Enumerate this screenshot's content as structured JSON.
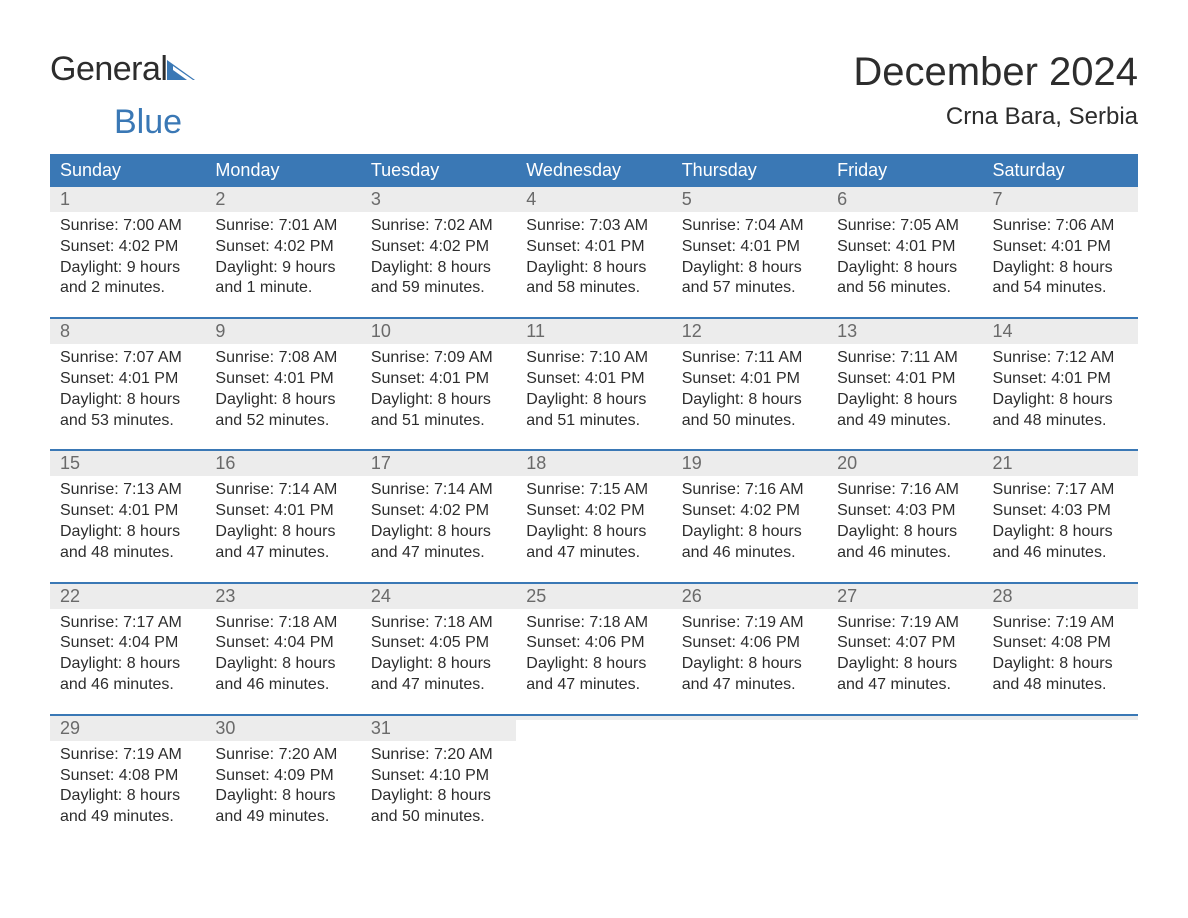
{
  "logo": {
    "text1": "General",
    "text2": "Blue"
  },
  "title": "December 2024",
  "location": "Crna Bara, Serbia",
  "colors": {
    "header_bg": "#3a78b5",
    "header_text": "#ffffff",
    "daynum_bg": "#ececec",
    "daynum_text": "#6a6a6a",
    "body_text": "#2d2d2d",
    "page_bg": "#ffffff",
    "week_border": "#3a78b5",
    "logo_blue": "#3a78b5"
  },
  "day_headers": [
    "Sunday",
    "Monday",
    "Tuesday",
    "Wednesday",
    "Thursday",
    "Friday",
    "Saturday"
  ],
  "weeks": [
    [
      {
        "n": "1",
        "sunrise": "Sunrise: 7:00 AM",
        "sunset": "Sunset: 4:02 PM",
        "d1": "Daylight: 9 hours",
        "d2": "and 2 minutes."
      },
      {
        "n": "2",
        "sunrise": "Sunrise: 7:01 AM",
        "sunset": "Sunset: 4:02 PM",
        "d1": "Daylight: 9 hours",
        "d2": "and 1 minute."
      },
      {
        "n": "3",
        "sunrise": "Sunrise: 7:02 AM",
        "sunset": "Sunset: 4:02 PM",
        "d1": "Daylight: 8 hours",
        "d2": "and 59 minutes."
      },
      {
        "n": "4",
        "sunrise": "Sunrise: 7:03 AM",
        "sunset": "Sunset: 4:01 PM",
        "d1": "Daylight: 8 hours",
        "d2": "and 58 minutes."
      },
      {
        "n": "5",
        "sunrise": "Sunrise: 7:04 AM",
        "sunset": "Sunset: 4:01 PM",
        "d1": "Daylight: 8 hours",
        "d2": "and 57 minutes."
      },
      {
        "n": "6",
        "sunrise": "Sunrise: 7:05 AM",
        "sunset": "Sunset: 4:01 PM",
        "d1": "Daylight: 8 hours",
        "d2": "and 56 minutes."
      },
      {
        "n": "7",
        "sunrise": "Sunrise: 7:06 AM",
        "sunset": "Sunset: 4:01 PM",
        "d1": "Daylight: 8 hours",
        "d2": "and 54 minutes."
      }
    ],
    [
      {
        "n": "8",
        "sunrise": "Sunrise: 7:07 AM",
        "sunset": "Sunset: 4:01 PM",
        "d1": "Daylight: 8 hours",
        "d2": "and 53 minutes."
      },
      {
        "n": "9",
        "sunrise": "Sunrise: 7:08 AM",
        "sunset": "Sunset: 4:01 PM",
        "d1": "Daylight: 8 hours",
        "d2": "and 52 minutes."
      },
      {
        "n": "10",
        "sunrise": "Sunrise: 7:09 AM",
        "sunset": "Sunset: 4:01 PM",
        "d1": "Daylight: 8 hours",
        "d2": "and 51 minutes."
      },
      {
        "n": "11",
        "sunrise": "Sunrise: 7:10 AM",
        "sunset": "Sunset: 4:01 PM",
        "d1": "Daylight: 8 hours",
        "d2": "and 51 minutes."
      },
      {
        "n": "12",
        "sunrise": "Sunrise: 7:11 AM",
        "sunset": "Sunset: 4:01 PM",
        "d1": "Daylight: 8 hours",
        "d2": "and 50 minutes."
      },
      {
        "n": "13",
        "sunrise": "Sunrise: 7:11 AM",
        "sunset": "Sunset: 4:01 PM",
        "d1": "Daylight: 8 hours",
        "d2": "and 49 minutes."
      },
      {
        "n": "14",
        "sunrise": "Sunrise: 7:12 AM",
        "sunset": "Sunset: 4:01 PM",
        "d1": "Daylight: 8 hours",
        "d2": "and 48 minutes."
      }
    ],
    [
      {
        "n": "15",
        "sunrise": "Sunrise: 7:13 AM",
        "sunset": "Sunset: 4:01 PM",
        "d1": "Daylight: 8 hours",
        "d2": "and 48 minutes."
      },
      {
        "n": "16",
        "sunrise": "Sunrise: 7:14 AM",
        "sunset": "Sunset: 4:01 PM",
        "d1": "Daylight: 8 hours",
        "d2": "and 47 minutes."
      },
      {
        "n": "17",
        "sunrise": "Sunrise: 7:14 AM",
        "sunset": "Sunset: 4:02 PM",
        "d1": "Daylight: 8 hours",
        "d2": "and 47 minutes."
      },
      {
        "n": "18",
        "sunrise": "Sunrise: 7:15 AM",
        "sunset": "Sunset: 4:02 PM",
        "d1": "Daylight: 8 hours",
        "d2": "and 47 minutes."
      },
      {
        "n": "19",
        "sunrise": "Sunrise: 7:16 AM",
        "sunset": "Sunset: 4:02 PM",
        "d1": "Daylight: 8 hours",
        "d2": "and 46 minutes."
      },
      {
        "n": "20",
        "sunrise": "Sunrise: 7:16 AM",
        "sunset": "Sunset: 4:03 PM",
        "d1": "Daylight: 8 hours",
        "d2": "and 46 minutes."
      },
      {
        "n": "21",
        "sunrise": "Sunrise: 7:17 AM",
        "sunset": "Sunset: 4:03 PM",
        "d1": "Daylight: 8 hours",
        "d2": "and 46 minutes."
      }
    ],
    [
      {
        "n": "22",
        "sunrise": "Sunrise: 7:17 AM",
        "sunset": "Sunset: 4:04 PM",
        "d1": "Daylight: 8 hours",
        "d2": "and 46 minutes."
      },
      {
        "n": "23",
        "sunrise": "Sunrise: 7:18 AM",
        "sunset": "Sunset: 4:04 PM",
        "d1": "Daylight: 8 hours",
        "d2": "and 46 minutes."
      },
      {
        "n": "24",
        "sunrise": "Sunrise: 7:18 AM",
        "sunset": "Sunset: 4:05 PM",
        "d1": "Daylight: 8 hours",
        "d2": "and 47 minutes."
      },
      {
        "n": "25",
        "sunrise": "Sunrise: 7:18 AM",
        "sunset": "Sunset: 4:06 PM",
        "d1": "Daylight: 8 hours",
        "d2": "and 47 minutes."
      },
      {
        "n": "26",
        "sunrise": "Sunrise: 7:19 AM",
        "sunset": "Sunset: 4:06 PM",
        "d1": "Daylight: 8 hours",
        "d2": "and 47 minutes."
      },
      {
        "n": "27",
        "sunrise": "Sunrise: 7:19 AM",
        "sunset": "Sunset: 4:07 PM",
        "d1": "Daylight: 8 hours",
        "d2": "and 47 minutes."
      },
      {
        "n": "28",
        "sunrise": "Sunrise: 7:19 AM",
        "sunset": "Sunset: 4:08 PM",
        "d1": "Daylight: 8 hours",
        "d2": "and 48 minutes."
      }
    ],
    [
      {
        "n": "29",
        "sunrise": "Sunrise: 7:19 AM",
        "sunset": "Sunset: 4:08 PM",
        "d1": "Daylight: 8 hours",
        "d2": "and 49 minutes."
      },
      {
        "n": "30",
        "sunrise": "Sunrise: 7:20 AM",
        "sunset": "Sunset: 4:09 PM",
        "d1": "Daylight: 8 hours",
        "d2": "and 49 minutes."
      },
      {
        "n": "31",
        "sunrise": "Sunrise: 7:20 AM",
        "sunset": "Sunset: 4:10 PM",
        "d1": "Daylight: 8 hours",
        "d2": "and 50 minutes."
      },
      {
        "empty": true
      },
      {
        "empty": true
      },
      {
        "empty": true
      },
      {
        "empty": true
      }
    ]
  ]
}
